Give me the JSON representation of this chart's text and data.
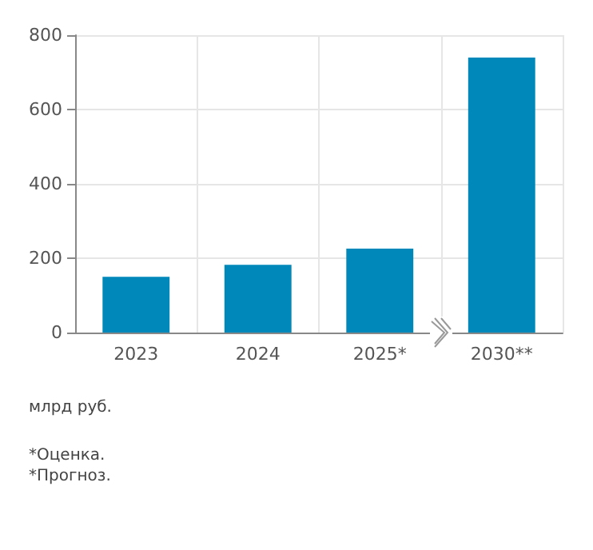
{
  "chart_data": {
    "type": "bar",
    "categories": [
      "2023",
      "2024",
      "2025*",
      "2030**"
    ],
    "values": [
      150,
      182,
      226,
      740
    ],
    "color": "#0088bb",
    "ylim": [
      0,
      800
    ],
    "yticks": [
      0,
      200,
      400,
      600,
      800
    ],
    "grid": true,
    "annotations": [
      "млрд руб.",
      "*Оценка.",
      "*Прогноз."
    ]
  }
}
